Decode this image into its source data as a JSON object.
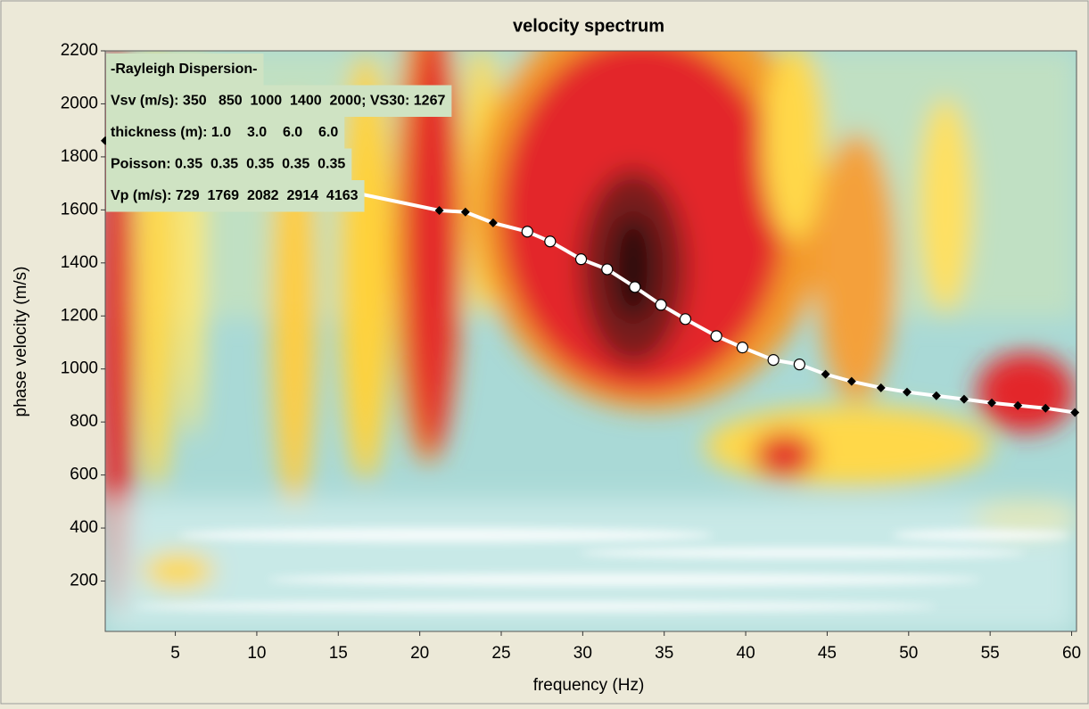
{
  "chart_data": {
    "type": "line",
    "title": "velocity spectrum",
    "x_label": "frequency (Hz)",
    "y_label": "phase velocity (m/s)",
    "xlim": [
      0.7,
      60.3
    ],
    "ylim": [
      10,
      2200
    ],
    "xticks": [
      5,
      10,
      15,
      20,
      25,
      30,
      35,
      40,
      45,
      50,
      55,
      60
    ],
    "yticks": [
      200,
      400,
      600,
      800,
      1000,
      1200,
      1400,
      1600,
      1800,
      2000,
      2200
    ],
    "annotations": [
      "-Rayleigh Dispersion-",
      "Vsv (m/s): 350   850  1000  1400  2000; VS30: 1267",
      "thickness (m): 1.0    3.0    6.0    6.0",
      "Poisson: 0.35  0.35  0.35  0.35  0.35",
      "Vp (m/s): 729  1769  2082  2914  4163"
    ],
    "series": [
      {
        "color": "#ffffff",
        "marker": "none",
        "x": [
          0.7,
          21.2,
          22.8,
          24.5,
          26.6,
          28.0,
          29.9,
          31.5,
          33.2,
          34.8,
          36.3,
          38.2,
          39.8,
          41.7,
          43.3,
          44.9,
          46.5,
          48.3,
          49.9,
          51.7,
          53.4,
          55.1,
          56.7,
          58.4,
          60.2
        ],
        "values": [
          1861,
          1598,
          1592,
          1551,
          1518,
          1481,
          1414,
          1376,
          1309,
          1242,
          1188,
          1124,
          1081,
          1034,
          1017,
          980,
          953,
          929,
          913,
          899,
          886,
          872,
          862,
          852,
          836
        ]
      },
      {
        "color": "#ffffff",
        "marker": "circle",
        "x": [
          26.6,
          28.0,
          29.9,
          31.5,
          33.2,
          34.8,
          36.3,
          38.2,
          39.8,
          41.7,
          43.3
        ],
        "values": [
          1518,
          1481,
          1414,
          1376,
          1309,
          1242,
          1188,
          1124,
          1081,
          1034,
          1017
        ]
      },
      {
        "color": "#000000",
        "marker": "diamond",
        "x": [
          0.7,
          21.2,
          22.8,
          24.5,
          44.9,
          46.5,
          48.3,
          49.9,
          51.7,
          53.4,
          55.1,
          56.7,
          58.4,
          60.2
        ],
        "values": [
          1861,
          1598,
          1592,
          1551,
          980,
          953,
          929,
          913,
          899,
          886,
          872,
          862,
          852,
          836
        ]
      }
    ]
  }
}
